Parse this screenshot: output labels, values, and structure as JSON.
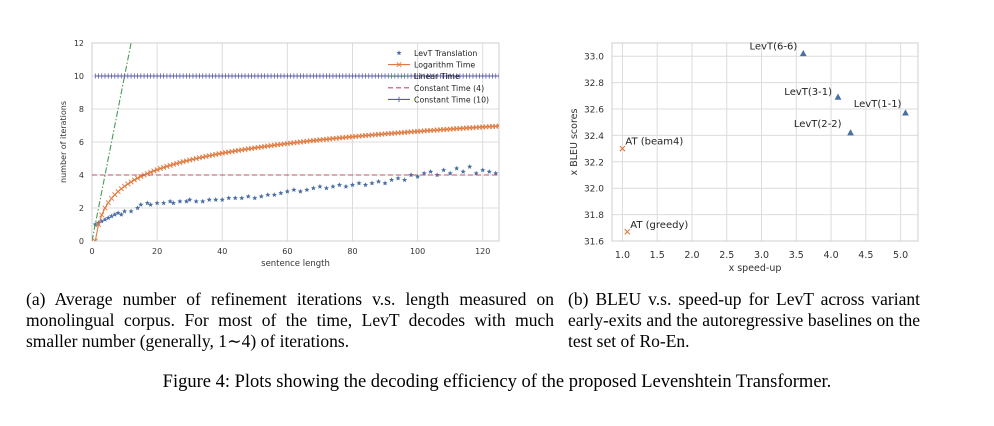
{
  "chart_data": [
    {
      "type": "scatter",
      "panel": "a",
      "xlabel": "sentence length",
      "ylabel": "number of iterations",
      "xlim": [
        0,
        125
      ],
      "ylim": [
        0,
        12
      ],
      "xticks": [
        0,
        20,
        40,
        60,
        80,
        100,
        120
      ],
      "yticks": [
        0,
        2,
        4,
        6,
        8,
        10,
        12
      ],
      "grid": true,
      "legend_position": "top-right",
      "series": [
        {
          "name": "LevT Translation",
          "type": "scatter",
          "marker": "star",
          "color": "#4a6fa5",
          "x": [
            1,
            2,
            3,
            4,
            5,
            6,
            7,
            8,
            9,
            10,
            12,
            14,
            15,
            17,
            18,
            20,
            22,
            24,
            25,
            27,
            29,
            30,
            32,
            34,
            36,
            38,
            40,
            42,
            44,
            46,
            48,
            50,
            52,
            54,
            56,
            58,
            60,
            62,
            64,
            66,
            68,
            70,
            72,
            74,
            76,
            78,
            80,
            82,
            84,
            86,
            88,
            90,
            92,
            94,
            96,
            98,
            100,
            102,
            104,
            106,
            108,
            110,
            112,
            114,
            116,
            118,
            120,
            122,
            124
          ],
          "y": [
            1.0,
            1.1,
            1.2,
            1.3,
            1.4,
            1.5,
            1.6,
            1.7,
            1.6,
            1.8,
            1.8,
            2.0,
            2.2,
            2.3,
            2.2,
            2.3,
            2.3,
            2.4,
            2.3,
            2.4,
            2.4,
            2.5,
            2.4,
            2.4,
            2.5,
            2.5,
            2.5,
            2.6,
            2.6,
            2.6,
            2.7,
            2.6,
            2.7,
            2.8,
            2.8,
            2.9,
            3.0,
            3.1,
            3.0,
            3.1,
            3.2,
            3.3,
            3.2,
            3.3,
            3.4,
            3.3,
            3.4,
            3.5,
            3.4,
            3.5,
            3.6,
            3.5,
            3.7,
            3.8,
            3.7,
            4.0,
            3.9,
            4.1,
            4.2,
            4.0,
            4.3,
            4.1,
            4.4,
            4.2,
            4.5,
            4.1,
            4.3,
            4.2,
            4.1
          ]
        },
        {
          "name": "Logarithm Time",
          "type": "line",
          "marker": "x",
          "color": "#e07a3f",
          "x": [
            1,
            2,
            3,
            4,
            5,
            6,
            8,
            10,
            12,
            15,
            20,
            25,
            30,
            40,
            50,
            60,
            70,
            80,
            90,
            100,
            110,
            120,
            125
          ],
          "y": [
            0.0,
            1.0,
            1.58,
            2.0,
            2.32,
            2.58,
            3.0,
            3.32,
            3.58,
            3.91,
            4.32,
            4.64,
            4.91,
            5.32,
            5.64,
            5.91,
            6.13,
            6.32,
            6.49,
            6.64,
            6.78,
            6.91,
            6.97
          ]
        },
        {
          "name": "Linear Time",
          "type": "line",
          "dash": "dashdot",
          "color": "#4a9a5a",
          "x": [
            0,
            12
          ],
          "y": [
            0,
            12
          ]
        },
        {
          "name": "Constant Time (4)",
          "type": "line",
          "dash": "dashed",
          "color": "#c0506b",
          "x": [
            0,
            125
          ],
          "y": [
            4,
            4
          ]
        },
        {
          "name": "Constant Time (10)",
          "type": "line",
          "marker": "plus",
          "color": "#5a5aa8",
          "x": [
            0,
            125
          ],
          "y": [
            10,
            10
          ]
        }
      ]
    },
    {
      "type": "scatter",
      "panel": "b",
      "xlabel": "x speed-up",
      "ylabel": "x BLEU scores",
      "xlim": [
        0.85,
        5.25
      ],
      "ylim": [
        31.6,
        33.1
      ],
      "xticks": [
        1.0,
        1.5,
        2.0,
        2.5,
        3.0,
        3.5,
        4.0,
        4.5,
        5.0
      ],
      "yticks": [
        31.6,
        31.8,
        32.0,
        32.2,
        32.4,
        32.6,
        32.8,
        33.0
      ],
      "ytick_labels": [
        "31.6",
        "31.8",
        "32.0",
        "32.2",
        "32.4",
        "32.6",
        "32.8",
        "33.0"
      ],
      "xtick_labels": [
        "1.0",
        "1.5",
        "2.0",
        "2.5",
        "3.0",
        "3.5",
        "4.0",
        "4.5",
        "5.0"
      ],
      "grid": true,
      "points": [
        {
          "label": "LevT(6-6)",
          "x": 3.6,
          "y": 33.02,
          "marker": "triangle",
          "color": "#4a6fa5"
        },
        {
          "label": "LevT(3-1)",
          "x": 4.1,
          "y": 32.69,
          "marker": "triangle",
          "color": "#4a6fa5"
        },
        {
          "label": "LevT(1-1)",
          "x": 5.07,
          "y": 32.57,
          "marker": "triangle",
          "color": "#4a6fa5"
        },
        {
          "label": "LevT(2-2)",
          "x": 4.28,
          "y": 32.42,
          "marker": "triangle",
          "color": "#4a6fa5"
        },
        {
          "label": "AT (beam4)",
          "x": 1.0,
          "y": 32.3,
          "marker": "x",
          "color": "#e07a3f"
        },
        {
          "label": "AT (greedy)",
          "x": 1.07,
          "y": 31.67,
          "marker": "x",
          "color": "#e07a3f"
        }
      ]
    }
  ],
  "captions": {
    "a": "(a) Average number of refinement iterations v.s. length measured on monolingual corpus. For most of the time, LevT decodes with much smaller number (generally, 1∼4) of iterations.",
    "b": "(b) BLEU v.s. speed-up for LevT across variant early-exits and the autoregressive baselines on the test set of Ro-En.",
    "figure": "Figure 4: Plots showing the decoding efficiency of the proposed Levenshtein Transformer."
  }
}
